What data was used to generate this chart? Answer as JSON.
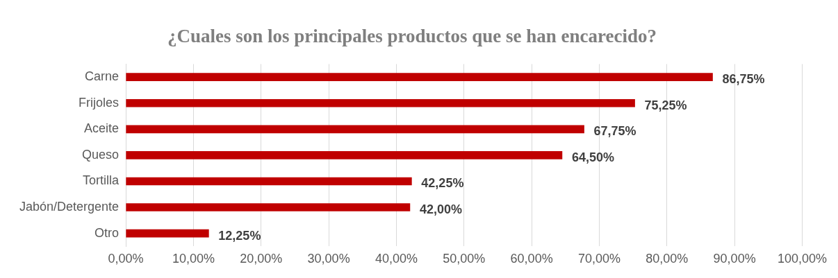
{
  "chart_data": {
    "type": "bar",
    "orientation": "horizontal",
    "title": "¿Cuales son los principales productos que se han encarecido?",
    "categories": [
      "Carne",
      "Frijoles",
      "Aceite",
      "Queso",
      "Tortilla",
      "Jabón/Detergente",
      "Otro"
    ],
    "values": [
      86.75,
      75.25,
      67.75,
      64.5,
      42.25,
      42,
      12.25
    ],
    "color": "#c00000",
    "value_labels": [
      "86,75%",
      "75,25%",
      "67,75%",
      "64,50%",
      "42,25%",
      "42,00%",
      "12,25%"
    ],
    "xlim": [
      0,
      100
    ],
    "xticks": [
      {
        "value": 0,
        "label": "0,00%"
      },
      {
        "value": 10,
        "label": "10,00%"
      },
      {
        "value": 20,
        "label": "20,00%"
      },
      {
        "value": 30,
        "label": "30,00%"
      },
      {
        "value": 40,
        "label": "40,00%"
      },
      {
        "value": 50,
        "label": "50,00%"
      },
      {
        "value": 60,
        "label": "60,00%"
      },
      {
        "value": 70,
        "label": "70,00%"
      },
      {
        "value": 80,
        "label": "80,00%"
      },
      {
        "value": 90,
        "label": "90,00%"
      },
      {
        "value": 100,
        "label": "100,00%"
      }
    ],
    "grid": "x",
    "legend": false
  }
}
